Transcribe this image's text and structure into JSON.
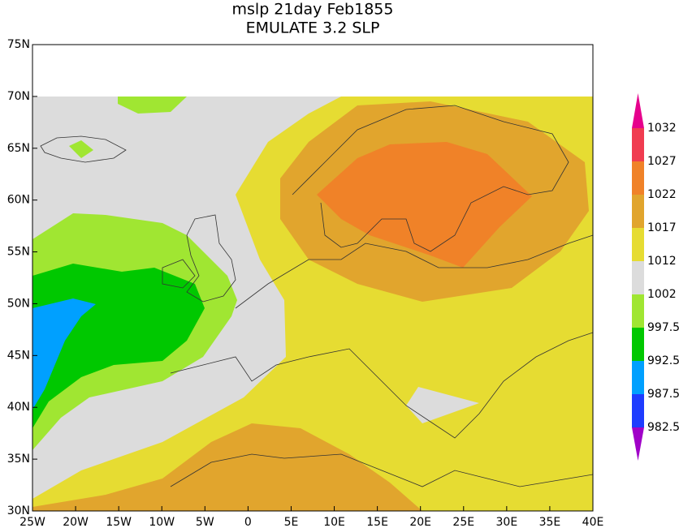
{
  "title": [
    "mslp 21day Feb1855",
    "EMULATE 3.2 SLP"
  ],
  "map": {
    "xlim": [
      -25,
      40
    ],
    "ylim": [
      30,
      75
    ],
    "xticks": [
      {
        "value": -25,
        "label": "25W"
      },
      {
        "value": -20,
        "label": "20W"
      },
      {
        "value": -15,
        "label": "15W"
      },
      {
        "value": -10,
        "label": "10W"
      },
      {
        "value": -5,
        "label": "5W"
      },
      0,
      {
        "value": 5,
        "label": "5E"
      },
      {
        "value": 10,
        "label": "10E"
      },
      {
        "value": 15,
        "label": "15E"
      },
      {
        "value": 20,
        "label": "20E"
      },
      {
        "value": 25,
        "label": "25E"
      },
      {
        "value": 30,
        "label": "30E"
      },
      {
        "value": 35,
        "label": "35E"
      },
      {
        "value": 40,
        "label": "40E"
      }
    ],
    "yticks": [
      {
        "value": 30,
        "label": "30N"
      },
      {
        "value": 35,
        "label": "35N"
      },
      {
        "value": 40,
        "label": "40N"
      },
      {
        "value": 45,
        "label": "45N"
      },
      {
        "value": 50,
        "label": "50N"
      },
      {
        "value": 55,
        "label": "55N"
      },
      {
        "value": 60,
        "label": "60N"
      },
      {
        "value": 65,
        "label": "65N"
      },
      {
        "value": 70,
        "label": "70N"
      },
      {
        "value": 75,
        "label": "75N"
      }
    ]
  },
  "colorbar": {
    "levels": [
      982.5,
      987.5,
      992.5,
      997.5,
      1002,
      1012,
      1017,
      1022,
      1027,
      1032
    ],
    "colors": [
      "#a000c8",
      "#1e3cff",
      "#00a0ff",
      "#00c800",
      "#a0e632",
      "#dcdcdc",
      "#e6dc32",
      "#e1a52d",
      "#f08228",
      "#f03c50",
      "#e6008c"
    ]
  }
}
